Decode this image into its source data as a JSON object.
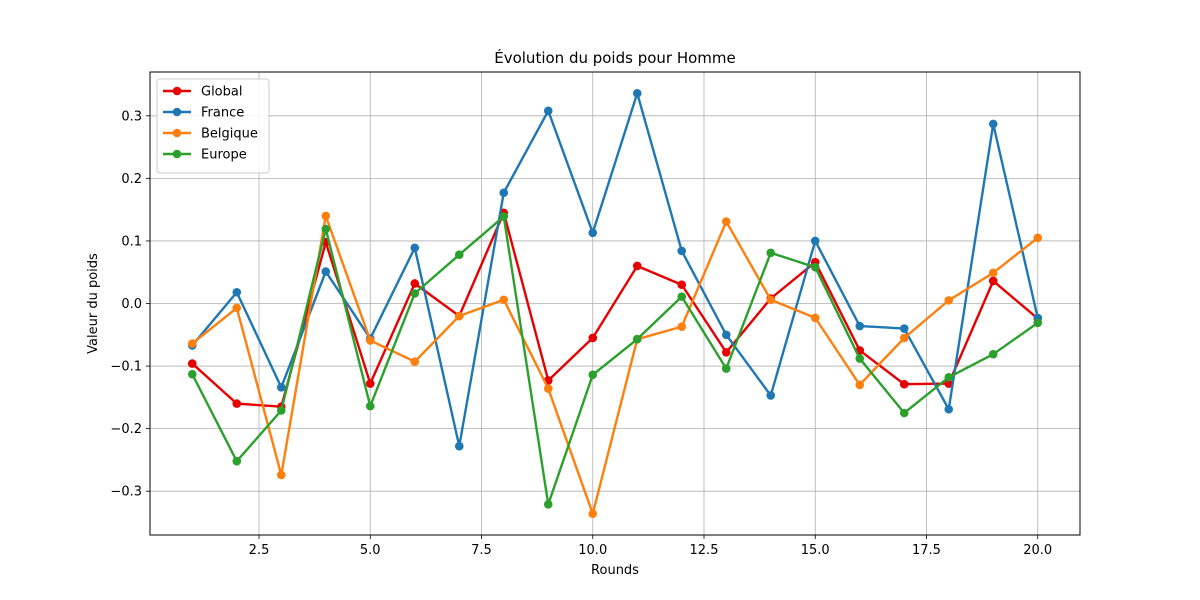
{
  "chart_data": {
    "type": "line",
    "title": "Évolution du poids pour Homme",
    "xlabel": "Rounds",
    "ylabel": "Valeur du poids",
    "xlim": [
      0.05,
      20.95
    ],
    "ylim": [
      -0.37,
      0.37
    ],
    "xticks": [
      2.5,
      5.0,
      7.5,
      10.0,
      12.5,
      15.0,
      17.5,
      20.0
    ],
    "xtick_labels": [
      "2.5",
      "5.0",
      "7.5",
      "10.0",
      "12.5",
      "15.0",
      "17.5",
      "20.0"
    ],
    "yticks": [
      -0.3,
      -0.2,
      -0.1,
      0.0,
      0.1,
      0.2,
      0.3
    ],
    "ytick_labels": [
      "−0.3",
      "−0.2",
      "−0.1",
      "0.0",
      "0.1",
      "0.2",
      "0.3"
    ],
    "grid": true,
    "legend_position": "top-left",
    "x": [
      1,
      2,
      3,
      4,
      5,
      6,
      7,
      8,
      9,
      10,
      11,
      12,
      13,
      14,
      15,
      16,
      17,
      18,
      19,
      20
    ],
    "series": [
      {
        "name": "Global",
        "color": "#e60000",
        "values": [
          -0.096,
          -0.16,
          -0.165,
          0.098,
          -0.128,
          0.032,
          -0.02,
          0.145,
          -0.123,
          -0.055,
          0.06,
          0.03,
          -0.078,
          0.008,
          0.066,
          -0.075,
          -0.129,
          -0.128,
          0.036,
          -0.024
        ]
      },
      {
        "name": "France",
        "color": "#1f77b4",
        "values": [
          -0.067,
          0.018,
          -0.134,
          0.051,
          -0.056,
          0.089,
          -0.228,
          0.177,
          0.308,
          0.113,
          0.336,
          0.084,
          -0.05,
          -0.147,
          0.1,
          -0.036,
          -0.04,
          -0.169,
          0.287,
          -0.023
        ]
      },
      {
        "name": "Belgique",
        "color": "#ff7f0e",
        "values": [
          -0.064,
          -0.007,
          -0.274,
          0.14,
          -0.059,
          -0.093,
          -0.02,
          0.006,
          -0.136,
          -0.336,
          -0.057,
          -0.037,
          0.131,
          0.006,
          -0.023,
          -0.13,
          -0.055,
          0.005,
          0.049,
          0.105
        ]
      },
      {
        "name": "Europe",
        "color": "#2ca02c",
        "values": [
          -0.113,
          -0.252,
          -0.171,
          0.119,
          -0.164,
          0.016,
          0.078,
          0.139,
          -0.321,
          -0.114,
          -0.057,
          0.011,
          -0.104,
          0.081,
          0.058,
          -0.088,
          -0.175,
          -0.118,
          -0.081,
          -0.031
        ]
      }
    ]
  }
}
